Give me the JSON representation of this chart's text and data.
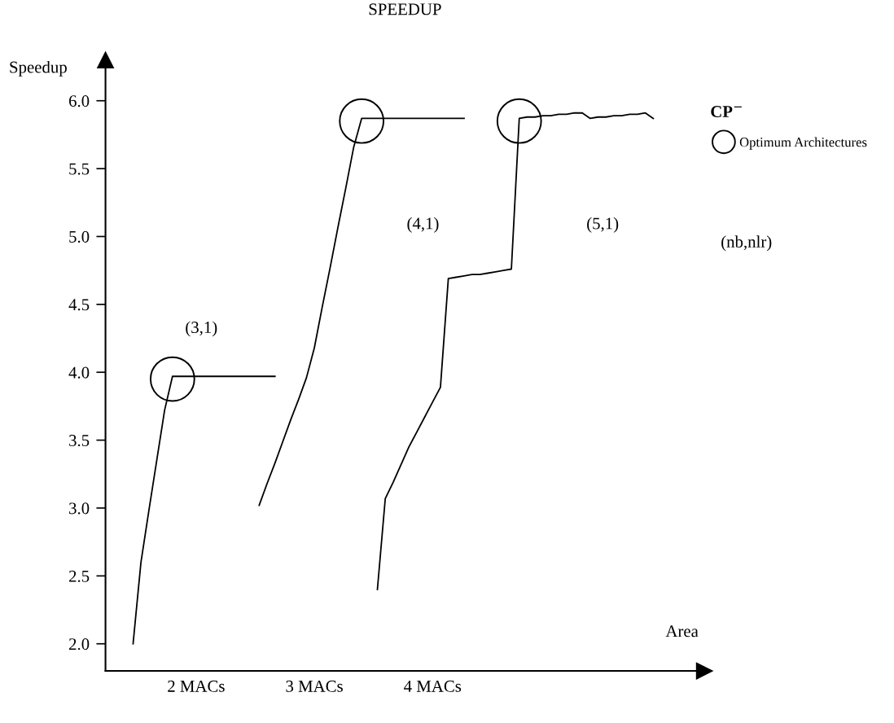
{
  "chart_data": {
    "type": "line",
    "title": "SPEEDUP",
    "xlabel": "Area",
    "ylabel": "Speedup",
    "legend_title": "CP$^{−}$",
    "categories": [
      null,
      null,
      null,
      null,
      null,
      null,
      null,
      null,
      null,
      null,
      null,
      "2 MACs",
      null,
      null,
      null,
      null,
      null,
      null,
      null,
      null,
      null,
      null,
      null,
      null,
      null,
      null,
      "3 MACs",
      null,
      null,
      null,
      null,
      null,
      null,
      null,
      null,
      null,
      null,
      null,
      null,
      null,
      null,
      "4 MACs",
      null,
      null,
      null,
      null,
      null,
      null,
      null,
      null,
      null,
      null,
      null,
      null,
      null,
      null,
      null,
      null,
      null,
      null,
      null,
      null,
      null,
      null,
      null,
      null,
      null,
      null,
      null,
      null,
      null,
      null,
      null,
      null,
      null,
      null
    ],
    "ylim": [
      1.8,
      6.3
    ],
    "yticks": [
      {
        "value": 2,
        "label": "2.0"
      },
      {
        "value": 2.5,
        "label": "2.5"
      },
      {
        "value": 3,
        "label": "3.0"
      },
      {
        "value": 3.5,
        "label": "3.5"
      },
      {
        "value": 4,
        "label": "4.0"
      },
      {
        "value": 4.5,
        "label": "4.5"
      },
      {
        "value": 5,
        "label": "5.0"
      },
      {
        "value": 5.5,
        "label": "5.5"
      },
      {
        "value": 6,
        "label": "6.0"
      }
    ],
    "grid": false,
    "legend": "top right",
    "line_style": "solid",
    "marker": "none",
    "series": [
      {
        "color": "#000000",
        "values": [
          null,
          null,
          null,
          2.0,
          2.6,
          2.98,
          3.35,
          3.72,
          3.97,
          3.97,
          3.97,
          3.97,
          3.97,
          3.97,
          3.97,
          3.97,
          3.97,
          3.97,
          3.97,
          3.97,
          3.97,
          3.97,
          null,
          null,
          null,
          null,
          null,
          null,
          null,
          null,
          null,
          null,
          null,
          null,
          null,
          null,
          null,
          null,
          null,
          null,
          null,
          null,
          null,
          null,
          null,
          null,
          null,
          null,
          null,
          null,
          null,
          null,
          null,
          null,
          null,
          null,
          null,
          null,
          null,
          null,
          null,
          null,
          null,
          null,
          null,
          null,
          null,
          null,
          null,
          null,
          null,
          null,
          null,
          null,
          null,
          null
        ]
      },
      {
        "color": "#000000",
        "values": [
          null,
          null,
          null,
          null,
          null,
          null,
          null,
          null,
          null,
          null,
          null,
          null,
          null,
          null,
          null,
          null,
          null,
          null,
          null,
          3.02,
          3.18,
          3.33,
          3.49,
          3.65,
          3.8,
          3.96,
          4.18,
          4.48,
          4.77,
          5.07,
          5.36,
          5.66,
          5.87,
          5.87,
          5.87,
          5.87,
          5.87,
          5.87,
          5.87,
          5.87,
          5.87,
          5.87,
          5.87,
          5.87,
          5.87,
          5.87,
          null,
          null,
          null,
          null,
          null,
          null,
          null,
          null,
          null,
          null,
          null,
          null,
          null,
          null,
          null,
          null,
          null,
          null,
          null,
          null,
          null,
          null,
          null,
          null,
          null,
          null,
          null,
          null,
          null,
          null
        ]
      },
      {
        "color": "#000000",
        "values": [
          null,
          null,
          null,
          null,
          null,
          null,
          null,
          null,
          null,
          null,
          null,
          null,
          null,
          null,
          null,
          null,
          null,
          null,
          null,
          null,
          null,
          null,
          null,
          null,
          null,
          null,
          null,
          null,
          null,
          null,
          null,
          null,
          null,
          null,
          2.4,
          3.07,
          3.19,
          3.32,
          3.45,
          3.56,
          3.67,
          3.78,
          3.89,
          4.69,
          4.7,
          4.71,
          4.72,
          4.72,
          4.73,
          4.74,
          4.75,
          4.76,
          5.87,
          5.88,
          5.88,
          5.89,
          5.89,
          5.9,
          5.9,
          5.91,
          5.91,
          5.87,
          5.88,
          5.88,
          5.89,
          5.89,
          5.9,
          5.9,
          5.91,
          5.87,
          null,
          null,
          null,
          null,
          null,
          null
        ]
      },
      {
        "type": "scatter",
        "name": "Optimum Architectures",
        "color": "#000000",
        "marker": "circle",
        "values": [
          null,
          null,
          null,
          null,
          null,
          null,
          null,
          null,
          3.95,
          null,
          null,
          null,
          null,
          null,
          null,
          null,
          null,
          null,
          null,
          null,
          null,
          null,
          null,
          null,
          null,
          null,
          null,
          null,
          null,
          null,
          null,
          null,
          5.85,
          null,
          null,
          null,
          null,
          null,
          null,
          null,
          null,
          null,
          null,
          null,
          null,
          null,
          null,
          null,
          null,
          null,
          null,
          null,
          5.85,
          null,
          null,
          null,
          null,
          null,
          null,
          null,
          null,
          null,
          null,
          null,
          null,
          null,
          null,
          null,
          null,
          null,
          null,
          null,
          null,
          null,
          null,
          null
        ]
      }
    ],
    "annotations": [
      "(3,1)",
      "(4,1)",
      "(5,1)",
      "(nb,nlr)"
    ]
  }
}
